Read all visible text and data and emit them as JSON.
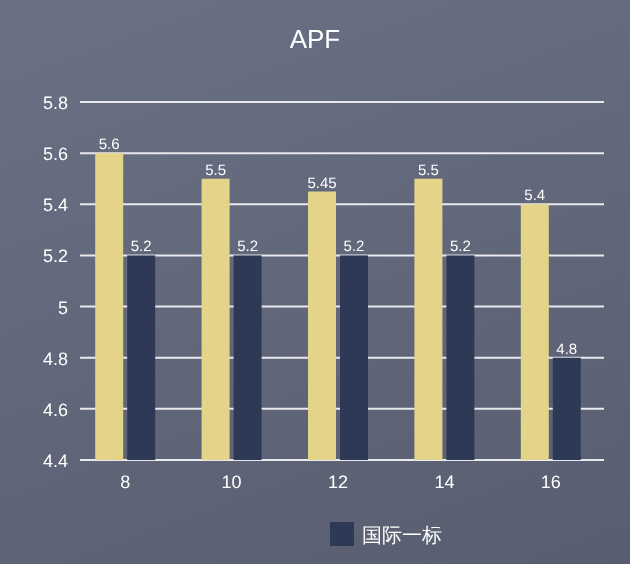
{
  "chart_data": {
    "type": "bar",
    "title": "APF",
    "categories": [
      "8",
      "10",
      "12",
      "14",
      "16"
    ],
    "series": [
      {
        "color": "#e3d48a",
        "values": [
          5.6,
          5.5,
          5.45,
          5.5,
          5.4
        ]
      },
      {
        "name": "国际一标",
        "color": "#2e3a55",
        "values": [
          5.2,
          5.2,
          5.2,
          5.2,
          4.8
        ]
      }
    ],
    "ylim": [
      4.4,
      5.8
    ],
    "yticks": [
      4.4,
      4.6,
      4.8,
      5,
      5.2,
      5.4,
      5.6,
      5.8
    ],
    "grid": "y",
    "legend": "bottom",
    "data_labels": true
  }
}
